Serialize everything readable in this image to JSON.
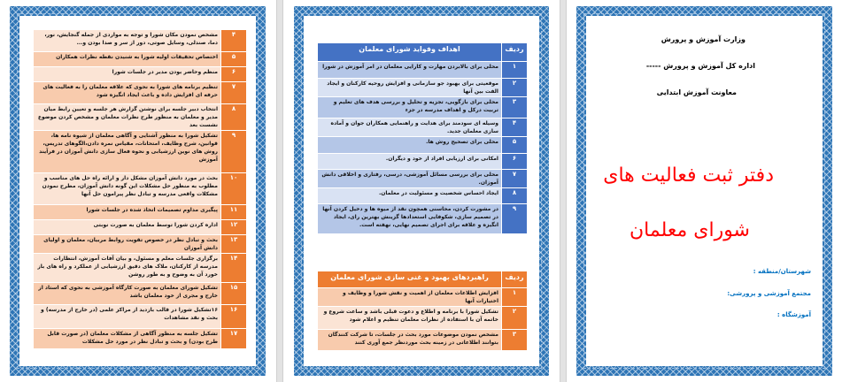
{
  "page_left": {
    "rows": [
      {
        "num": "۴",
        "text": "مشخص نمودن مکان شورا و توجه به مواردی از جمله گنجایش، نور، دما، صندلی، وسایل صوتی، دور از سر و صدا بودن و..."
      },
      {
        "num": "۵",
        "text": "اختصاص تحقیقات اولیه شورا به شنیدن نقطه نظرات همکاران"
      },
      {
        "num": "۶",
        "text": "منظم وحاضر بودن مدیر در جلسات شورا"
      },
      {
        "num": "۷",
        "text": "تنظیم برنامه های شورا به نحوی که علاقه معلمان را به فعالیت های حرفه ای افزایش داده و باعث ایجاد انگیزه شود"
      },
      {
        "num": "۸",
        "text": "انتخاب دبیر جلسه برای نوشتن گزارش هر جلسه و تعیین رابط میان مدیر و معلمان به منظور طرح نظرات معلمان و مشخص کردن موضوع نشست بعد"
      },
      {
        "num": "۹",
        "text": "تشکیل شورا به منظور آشنایی و آگاهی معلمان از شیوه نامه ها، قوانین، شرح وظایف، امتحانات، مقیاس نمره دادن،الگوهای تدریس، روش های نوین ارزشیابی و نحوه فعال سازی دانش آموزان در فرآیند آموزش"
      },
      {
        "num": "۱۰",
        "text": "بحث در مورد دانش آموزان مشکل دار و ارائه راه حل های مناسب و مطلوب به منظور حل مشکلات این گونه دانش آموزان، مطرح نمودن مشکلات واقعی مدرسه و تبادل نظر پیرامون حل آنها"
      },
      {
        "num": "۱۱",
        "text": "پیگیری مداوم تصمیمات اتخاذ شده در جلسات شورا"
      },
      {
        "num": "۱۲",
        "text": "اداره کردن شورا توسط معلمان به صورت نوبتی"
      },
      {
        "num": "۱۳",
        "text": "بحث و تبادل نظر در خصوص تقویت روابط مربیان، معلمان و اولیای دانش آموزان"
      },
      {
        "num": "۱۴",
        "text": "برگزاری جلسات معلم و مسئول، و بیان آفات آموزش، انتظارات مدرسه از کارکنان، ملاک های دقیق ارزشیابی از عملکرد و راه های باز خورد آن به وضوح و به طور روشن"
      },
      {
        "num": "۱۵",
        "text": "تشکیل شورای معلمان به صورت کارگاه آموزشی به نحوی که استاد از خارج و مجری از خود معلمان باشد"
      },
      {
        "num": "۱۶",
        "text": "۱۶تشکیل شورا در قالب بازدید از مراکز علمی (در خارج از مدرسه) و بحث و نقد مشاهدات"
      },
      {
        "num": "۱۷",
        "text": "تشکیل جلسه به منظور آگاهی از مشکلات معلمان (در صورت قابل طرح بودن) و بحث و تبادل نظر در مورد حل مشکلات"
      }
    ]
  },
  "page_middle": {
    "goals_table": {
      "header_num": "ردیف",
      "header_title": "اهداف وفواید شورای معلمان",
      "rows": [
        {
          "num": "۱",
          "text": "محلی برای بالابردن مهارت و کارایی معلمان در امر آموزش در شورا"
        },
        {
          "num": "۲",
          "text": "موقعیتی برای بهبود جو سازمانی و افزایش روحیه کارکنان و ایجاد الفت بین آنها"
        },
        {
          "num": "۳",
          "text": "محلی برای بازگویی، تجزیه و تحلیل و بررسی هدف های تعلیم و تربیت درکل و اهداف مدرسه در جزء"
        },
        {
          "num": "۴",
          "text": "وسیله ای سودمند برای هدایت و راهنمایی همکاران جوان و آماده سازی معلمان جدید."
        },
        {
          "num": "۵",
          "text": "محلی برای تصحیح روش ها."
        },
        {
          "num": "۶",
          "text": "امکانی برای ارزیابی افراد از خود و دیگران."
        },
        {
          "num": "۷",
          "text": "محلی برای بررسی مسائل آموزشی، درسی، رفتاری و اخلاقی دانش آموزان."
        },
        {
          "num": "۸",
          "text": "ایجاد احساس شخصیت و مسئولیت در معلمان."
        },
        {
          "num": "۹",
          "text": "در مشورت کردن، محاسنی همچون نقد از میوه ها و دخیل کردن آنها در تصمیم سازی، شکوفایی استعدادها گزینش بهترین رای، ایجاد انگیزه و علاقه برای اجرای تصمیم نهایی، نهفته است."
        }
      ]
    },
    "improve_table": {
      "header_num": "ردیف",
      "header_title": "راهبردهای بهبود و غنی سازی شورای معلمان",
      "rows": [
        {
          "num": "۱",
          "text": "افزایش اطلاعات معلمان از اهمیت و نقش شورا و وظایف و اختیارات آنها"
        },
        {
          "num": "۲",
          "text": "تشکیل شورا با برنامه و اطلاع و دعوت قبلی باشد و ساعت شروع و خاتمه آن با استفاده از نظرات معلمان تنظیم و اعلام شود"
        },
        {
          "num": "۳",
          "text": "مشخص نمودن موضوعات مورد بحث در جلسات، تا شرکت کنندگان بتوانند اطلاعاتی در زمینه بحث موردنظر جمع آوری کنند"
        }
      ]
    }
  },
  "page_right": {
    "line1": "وزارت آموزش و پرورش",
    "line2": "اداره کل آموزش و پرورش -----",
    "line3": "معاونت آموزش ابتدایی",
    "title1": "دفتر ثبت فعالیت های",
    "title2": "شورای معلمان",
    "field1": "شهرستان/منطقه :",
    "field2": "مجتمع آموزشی و پرورشی:",
    "field3": "آموزشگاه :"
  },
  "colors": {
    "frame": "#2e75b6",
    "orange_dark": "#ed7d31",
    "orange_mid": "#f8cbad",
    "orange_light": "#fbe4d5",
    "blue_dark": "#4472c4",
    "blue_mid": "#b4c6e7",
    "blue_light": "#d9e2f3",
    "title_red": "#ff0000",
    "field_blue": "#0070c0"
  }
}
